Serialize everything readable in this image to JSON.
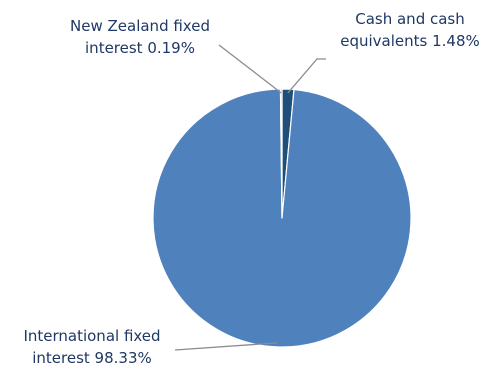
{
  "chart_data": {
    "type": "pie",
    "slices": [
      {
        "name": "Cash and cash equivalents",
        "label_lines": [
          "Cash and cash",
          "equivalents 1.48%"
        ],
        "value": 1.48,
        "color": "#1F4E79"
      },
      {
        "name": "International fixed interest",
        "label_lines": [
          "International fixed",
          "interest 98.33%"
        ],
        "value": 98.33,
        "color": "#4F81BD"
      },
      {
        "name": "New Zealand fixed interest",
        "label_lines": [
          "New Zealand fixed",
          "interest 0.19%"
        ],
        "value": 0.19,
        "color": "#9BBB59"
      }
    ],
    "start_angle_deg": 0,
    "direction": "clockwise",
    "legend": "none",
    "data_labels": "outside-with-leader-lines",
    "slice_border_color": "#ffffff",
    "label_color": "#1F3864",
    "leader_color": "#8C8C8C"
  }
}
